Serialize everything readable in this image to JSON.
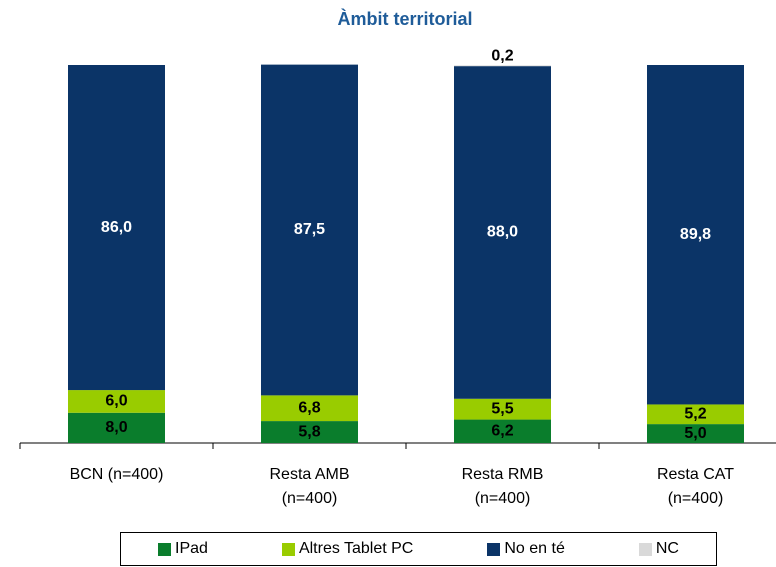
{
  "chart_data": {
    "type": "stacked_bar",
    "title": "Àmbit territorial",
    "categories": [
      "BCN (n=400)",
      "Resta AMB (n=400)",
      "Resta RMB (n=400)",
      "Resta CAT (n=400)"
    ],
    "ylim": [
      0,
      100
    ],
    "series": [
      {
        "name": "IPad",
        "color": "#0a7d2c",
        "values": [
          8.0,
          5.8,
          6.2,
          5.0
        ],
        "value_labels": [
          "8,0",
          "5,8",
          "6,2",
          "5,0"
        ]
      },
      {
        "name": "Altres Tablet PC",
        "color": "#99cc00",
        "values": [
          6.0,
          6.8,
          5.5,
          5.2
        ],
        "value_labels": [
          "6,0",
          "6,8",
          "5,5",
          "5,2"
        ]
      },
      {
        "name": "No en té",
        "color": "#0b3467",
        "values": [
          86.0,
          87.5,
          88.0,
          89.8
        ],
        "value_labels": [
          "86,0",
          "87,5",
          "88,0",
          "89,8"
        ]
      },
      {
        "name": "NC",
        "color": "#d9d9d9",
        "values": [
          null,
          null,
          0.2,
          null
        ],
        "value_labels": [
          null,
          null,
          "0,2",
          null
        ]
      }
    ]
  }
}
